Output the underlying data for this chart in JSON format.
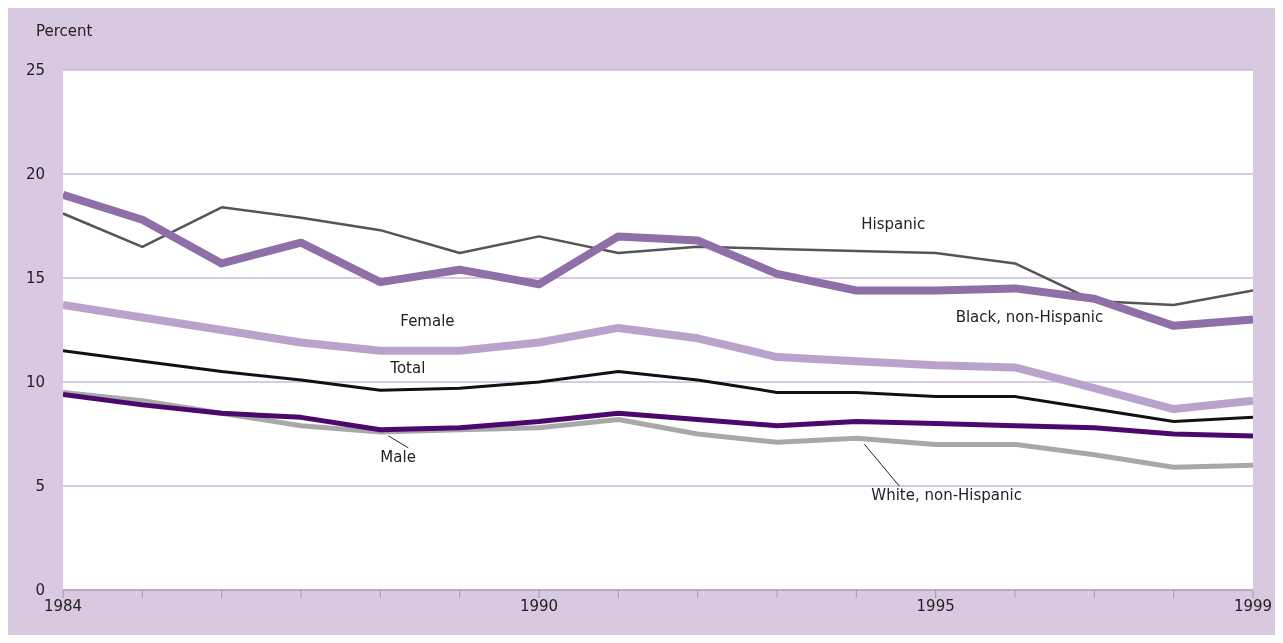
{
  "chart_data": {
    "type": "line",
    "ylabel": "Percent",
    "x": [
      1984,
      1985,
      1986,
      1987,
      1988,
      1989,
      1990,
      1991,
      1992,
      1993,
      1994,
      1995,
      1996,
      1997,
      1998,
      1999
    ],
    "series": [
      {
        "name": "Hispanic",
        "color": "#555555",
        "values": [
          18.1,
          16.5,
          18.4,
          17.9,
          17.3,
          16.2,
          17.0,
          16.2,
          16.5,
          16.4,
          16.3,
          16.2,
          15.7,
          13.9,
          13.7,
          14.4
        ]
      },
      {
        "name": "Black, non-Hispanic",
        "color": "#8e6fa8",
        "values": [
          19.0,
          17.8,
          15.7,
          16.7,
          14.8,
          15.4,
          14.7,
          17.0,
          16.8,
          15.2,
          14.4,
          14.4,
          14.5,
          14.0,
          12.7,
          13.0
        ]
      },
      {
        "name": "Female",
        "color": "#b9a3cc",
        "values": [
          13.7,
          13.1,
          12.5,
          11.9,
          11.5,
          11.5,
          11.9,
          12.6,
          12.1,
          11.2,
          11.0,
          10.8,
          10.7,
          9.7,
          8.7,
          9.1
        ]
      },
      {
        "name": "Total",
        "color": "#111111",
        "values": [
          11.5,
          11.0,
          10.5,
          10.1,
          9.6,
          9.7,
          10.0,
          10.5,
          10.1,
          9.5,
          9.5,
          9.3,
          9.3,
          8.7,
          8.1,
          8.3
        ]
      },
      {
        "name": "White, non-Hispanic",
        "color": "#a8a8a8",
        "values": [
          9.5,
          9.1,
          8.5,
          7.9,
          7.6,
          7.7,
          7.8,
          8.2,
          7.5,
          7.1,
          7.3,
          7.0,
          7.0,
          6.5,
          5.9,
          6.0
        ]
      },
      {
        "name": "Male",
        "color": "#4b0a6b",
        "values": [
          9.4,
          8.9,
          8.5,
          8.3,
          7.7,
          7.8,
          8.1,
          8.5,
          8.2,
          7.9,
          8.1,
          8.0,
          7.9,
          7.8,
          7.5,
          7.4
        ]
      }
    ],
    "xlim": [
      1984,
      1999
    ],
    "xticks": [
      1984,
      {
        "value": 1985,
        "label": null
      },
      {
        "value": 1986,
        "label": null
      },
      {
        "value": 1987,
        "label": null
      },
      {
        "value": 1988,
        "label": null
      },
      {
        "value": 1989,
        "label": null
      },
      1990,
      {
        "value": 1991,
        "label": null
      },
      {
        "value": 1992,
        "label": null
      },
      {
        "value": 1993,
        "label": null
      },
      {
        "value": 1994,
        "label": null
      },
      1995,
      {
        "value": 1996,
        "label": null
      },
      {
        "value": 1997,
        "label": null
      },
      {
        "value": 1998,
        "label": null
      },
      1999
    ],
    "ylim": [
      0,
      25
    ],
    "yticks": [
      0,
      5,
      10,
      15,
      20,
      25
    ],
    "grid": "y",
    "legend": false,
    "marker": "none",
    "line_style": "solid"
  }
}
